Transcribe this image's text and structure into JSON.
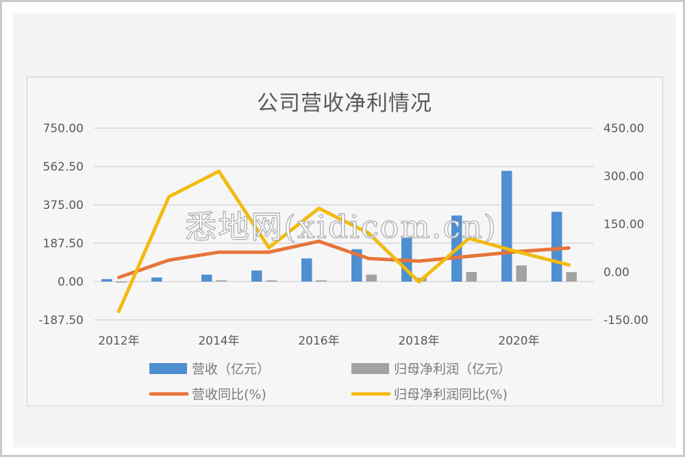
{
  "chart_data": {
    "type": "bar",
    "title": "公司营收净利情况",
    "categories": [
      "2012年",
      "2013年",
      "2014年",
      "2015年",
      "2016年",
      "2017年",
      "2018年",
      "2019年",
      "2020年",
      "2021年"
    ],
    "x_tick_labels": [
      "2012年",
      "2014年",
      "2016年",
      "2018年",
      "2020年"
    ],
    "series": [
      {
        "name": "营收（亿元）",
        "type": "bar",
        "axis": "left",
        "color": "#4e8fd1",
        "values": [
          12,
          20,
          34,
          54,
          113,
          158,
          217,
          323,
          541,
          341
        ]
      },
      {
        "name": "归母净利润（亿元）",
        "type": "bar",
        "axis": "left",
        "color": "#a2a2a2",
        "values": [
          -5,
          0,
          6,
          6,
          6,
          34,
          19,
          47,
          79,
          46
        ]
      },
      {
        "name": "营收同比(%)",
        "type": "line",
        "axis": "right",
        "color": "#e8743b",
        "values": [
          -17,
          37,
          62,
          62,
          96,
          42,
          34,
          49,
          64,
          75
        ]
      },
      {
        "name": "归母净利润同比(%)",
        "type": "line",
        "axis": "right",
        "color": "#f2bb0f",
        "values": [
          -123,
          235,
          315,
          76,
          199,
          121,
          -31,
          105,
          62,
          22
        ]
      }
    ],
    "left_axis": {
      "ticks": [
        "750.00",
        "562.50",
        "375.00",
        "187.50",
        "0.00",
        "-187.50"
      ],
      "ylim": [
        -187.5,
        750
      ]
    },
    "right_axis": {
      "ticks": [
        "450.00",
        "300.00",
        "150.00",
        "0.00",
        "-150.00"
      ],
      "ylim": [
        -150,
        450
      ]
    },
    "xlabel": "",
    "ylabel": "",
    "grid": true,
    "legend_position": "bottom"
  },
  "legend": [
    {
      "label": "营收（亿元）",
      "kind": "bar",
      "color": "#4e8fd1"
    },
    {
      "label": "归母净利润（亿元）",
      "kind": "bar",
      "color": "#a2a2a2"
    },
    {
      "label": "营收同比(%)",
      "kind": "line",
      "color": "#e8743b"
    },
    {
      "label": "归母净利润同比(%)",
      "kind": "line",
      "color": "#f2bb0f"
    }
  ],
  "watermark": "悉地网(xidicom.cn)"
}
